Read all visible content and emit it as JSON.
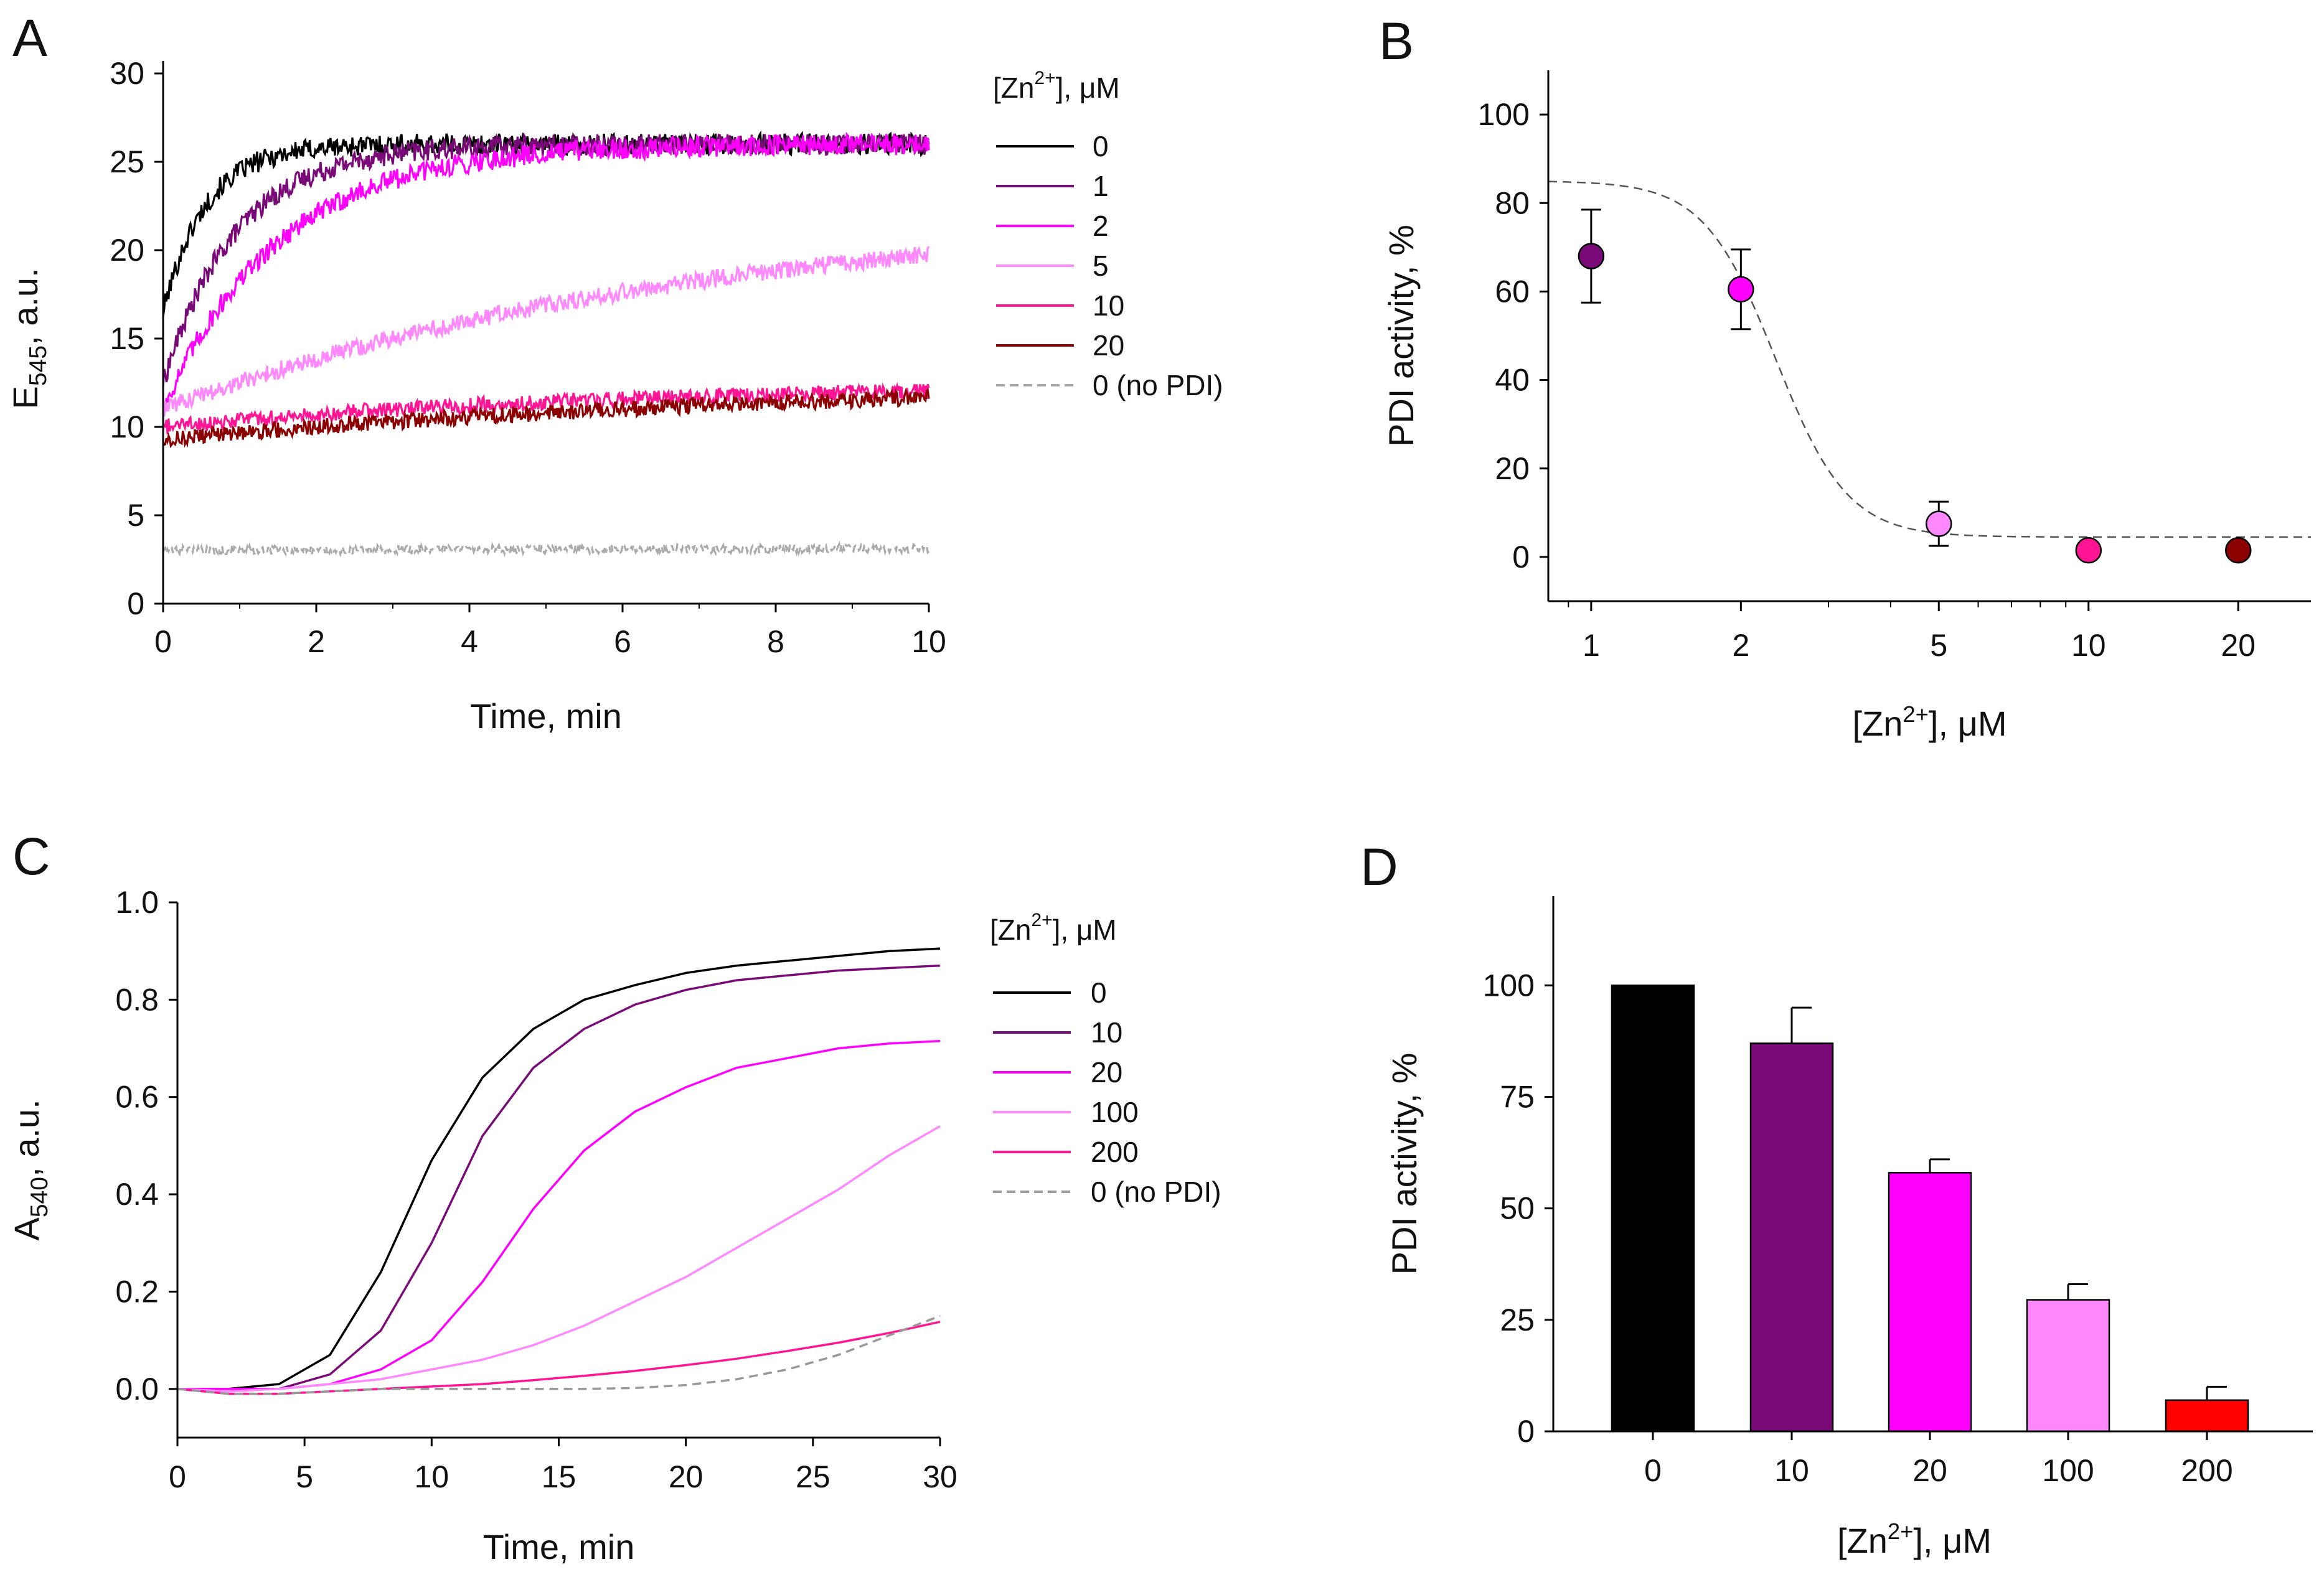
{
  "figure": {
    "panels": [
      "A",
      "B",
      "C",
      "D"
    ]
  },
  "chart_data": [
    {
      "panel": "A",
      "type": "line",
      "xlabel": "Time, min",
      "ylabel_main": "E",
      "ylabel_sub": "545",
      "ylabel_tail": ", a.u.",
      "xlim": [
        0,
        10
      ],
      "ylim": [
        0,
        30
      ],
      "xticks": [
        0,
        2,
        4,
        6,
        8,
        10
      ],
      "yticks": [
        0,
        5,
        10,
        15,
        20,
        25,
        30
      ],
      "legend_title": "[Zn2+], μM",
      "series": [
        {
          "name": "0",
          "color": "#000000",
          "start": 16.5,
          "plateau": 26.0,
          "tau": 0.55,
          "noise": 0.6,
          "dashed": false
        },
        {
          "name": "1",
          "color": "#7a0a78",
          "start": 12.5,
          "plateau": 26.0,
          "tau": 0.95,
          "noise": 0.6,
          "dashed": false
        },
        {
          "name": "2",
          "color": "#ff00ff",
          "start": 11.0,
          "plateau": 26.0,
          "tau": 1.5,
          "noise": 0.6,
          "dashed": false
        },
        {
          "name": "5",
          "color": "#ff88ff",
          "start": 11.0,
          "plateau": 22.5,
          "tau": 7.0,
          "noise": 0.5,
          "dashed": false
        },
        {
          "name": "10",
          "color": "#ff1493",
          "start": 10.0,
          "plateau": 12.5,
          "tau": 6.0,
          "noise": 0.45,
          "dashed": false
        },
        {
          "name": "20",
          "color": "#8b0000",
          "start": 9.3,
          "plateau": 12.8,
          "tau": 9.0,
          "noise": 0.45,
          "dashed": false
        },
        {
          "name": "0 (no PDI)",
          "color": "#aaaaaa",
          "start": 3.0,
          "plateau": 3.2,
          "tau": 10.0,
          "noise": 0.25,
          "dashed": true
        }
      ]
    },
    {
      "panel": "B",
      "type": "scatter",
      "xscale": "log",
      "xlabel": "[Zn2+], μM",
      "ylabel": "PDI activity, %",
      "xticks": [
        1,
        2,
        5,
        10,
        20
      ],
      "yticks": [
        0,
        20,
        40,
        60,
        80,
        100
      ],
      "ylim": [
        -10,
        110
      ],
      "points": [
        {
          "x": 1,
          "y": 68,
          "err": 10.5,
          "color": "#7a0a78"
        },
        {
          "x": 2,
          "y": 60.5,
          "err": 9.0,
          "color": "#ff00ff"
        },
        {
          "x": 5,
          "y": 7.5,
          "err": 5.0,
          "color": "#ff88ff"
        },
        {
          "x": 10,
          "y": 1.5,
          "err": 0,
          "color": "#ff1493"
        },
        {
          "x": 20,
          "y": 1.5,
          "err": 0,
          "color": "#8b0000"
        }
      ],
      "fit": {
        "top": 85,
        "bottom": 4.5,
        "ic50": 2.35,
        "hill": 6,
        "color": "#555555",
        "dashed": true
      }
    },
    {
      "panel": "C",
      "type": "line",
      "xlabel": "Time, min",
      "ylabel_main": "A",
      "ylabel_sub": "540",
      "ylabel_tail": ", a.u.",
      "xlim": [
        0,
        30
      ],
      "ylim": [
        -0.1,
        1.0
      ],
      "xticks": [
        0,
        5,
        10,
        15,
        20,
        25,
        30
      ],
      "yticks": [
        "0.0",
        "0.2",
        "0.4",
        "0.6",
        "0.8",
        "1.0"
      ],
      "legend_title": "[Zn2+], μM",
      "series": [
        {
          "name": "0",
          "color": "#000000",
          "dashed": false,
          "x": [
            0,
            2,
            4,
            6,
            8,
            10,
            12,
            14,
            16,
            18,
            20,
            22,
            24,
            26,
            28,
            30
          ],
          "y": [
            0,
            0,
            0.01,
            0.07,
            0.24,
            0.47,
            0.64,
            0.74,
            0.8,
            0.83,
            0.855,
            0.87,
            0.88,
            0.89,
            0.9,
            0.905
          ]
        },
        {
          "name": "10",
          "color": "#7a0a78",
          "dashed": false,
          "x": [
            0,
            2,
            4,
            6,
            8,
            10,
            12,
            14,
            16,
            18,
            20,
            22,
            24,
            26,
            28,
            30
          ],
          "y": [
            0,
            0,
            0,
            0.03,
            0.12,
            0.3,
            0.52,
            0.66,
            0.74,
            0.79,
            0.82,
            0.84,
            0.85,
            0.86,
            0.865,
            0.87
          ]
        },
        {
          "name": "20",
          "color": "#ff00ff",
          "dashed": false,
          "x": [
            0,
            2,
            4,
            6,
            8,
            10,
            12,
            14,
            16,
            18,
            20,
            22,
            24,
            26,
            28,
            30
          ],
          "y": [
            0,
            0,
            0,
            0.01,
            0.04,
            0.1,
            0.22,
            0.37,
            0.49,
            0.57,
            0.62,
            0.66,
            0.68,
            0.7,
            0.71,
            0.715
          ]
        },
        {
          "name": "100",
          "color": "#ff88ff",
          "dashed": false,
          "x": [
            0,
            2,
            4,
            6,
            8,
            10,
            12,
            14,
            16,
            18,
            20,
            22,
            24,
            26,
            28,
            30
          ],
          "y": [
            0,
            -0.005,
            0,
            0.01,
            0.02,
            0.04,
            0.06,
            0.09,
            0.13,
            0.18,
            0.23,
            0.29,
            0.35,
            0.41,
            0.48,
            0.54
          ]
        },
        {
          "name": "200",
          "color": "#ff1493",
          "dashed": false,
          "x": [
            0,
            2,
            4,
            6,
            8,
            10,
            12,
            14,
            16,
            18,
            20,
            22,
            24,
            26,
            28,
            30
          ],
          "y": [
            0,
            -0.01,
            -0.01,
            -0.005,
            0,
            0.005,
            0.01,
            0.018,
            0.027,
            0.037,
            0.049,
            0.062,
            0.078,
            0.095,
            0.115,
            0.138
          ]
        },
        {
          "name": "0 (no PDI)",
          "color": "#999999",
          "dashed": true,
          "x": [
            0,
            2,
            4,
            6,
            8,
            10,
            12,
            14,
            16,
            18,
            20,
            22,
            24,
            26,
            28,
            30
          ],
          "y": [
            0,
            -0.01,
            -0.01,
            -0.005,
            0,
            0,
            0,
            0,
            0,
            0.002,
            0.008,
            0.02,
            0.04,
            0.07,
            0.11,
            0.15
          ]
        }
      ]
    },
    {
      "panel": "D",
      "type": "bar",
      "xlabel": "[Zn2+], μM",
      "ylabel": "PDI activity, %",
      "yticks": [
        0,
        25,
        50,
        75,
        100
      ],
      "ylim": [
        0,
        120
      ],
      "categories": [
        "0",
        "10",
        "20",
        "100",
        "200"
      ],
      "values": [
        100,
        87,
        58,
        29.5,
        7
      ],
      "errors": [
        0,
        8,
        3,
        3.5,
        3
      ],
      "colors": [
        "#000000",
        "#7a0a78",
        "#ff00ff",
        "#ff88ff",
        "#ff0000"
      ]
    }
  ]
}
